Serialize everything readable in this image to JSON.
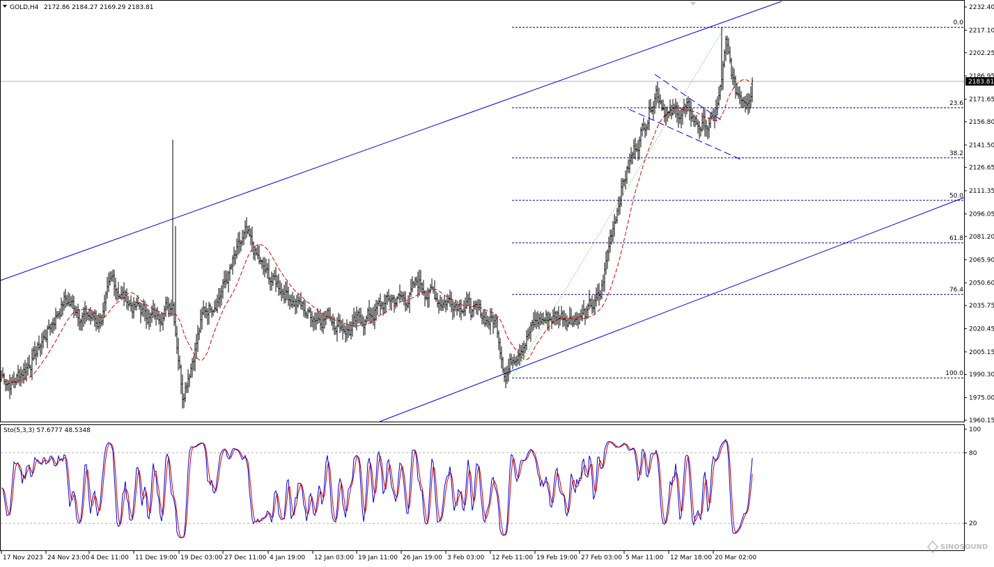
{
  "header": {
    "symbol": "GOLD,H4",
    "ohlc": "2172.86 2184.27 2169.29 2183.81"
  },
  "price_axis": {
    "ticks": [
      "2232.40",
      "2217.10",
      "2202.25",
      "2186.95",
      "2171.65",
      "2156.80",
      "2141.50",
      "2126.65",
      "2111.35",
      "2096.05",
      "2081.20",
      "2065.90",
      "2050.60",
      "2035.75",
      "2020.45",
      "2005.15",
      "1990.30",
      "1975.00",
      "1960.15"
    ],
    "current_price": "2183.81"
  },
  "fib_levels": [
    {
      "label": "0.0",
      "price": 2219
    },
    {
      "label": "23.6",
      "price": 2166
    },
    {
      "label": "38.2",
      "price": 2133
    },
    {
      "label": "50.0",
      "price": 2105
    },
    {
      "label": "61.8",
      "price": 2077
    },
    {
      "label": "76.4",
      "price": 2043
    },
    {
      "label": "100.0",
      "price": 1988
    }
  ],
  "stochastic": {
    "label": "Sto(5,3,3) 57.6777 48.5348",
    "levels": [
      "100",
      "80",
      "20"
    ]
  },
  "time_axis": {
    "labels": [
      "17 Nov 2023",
      "24 Nov 23:00",
      "4 Dec 11:00",
      "11 Dec 19:00",
      "19 Dec 03:00",
      "27 Dec 11:00",
      "4 Jan 19:00",
      "12 Jan 03:00",
      "19 Jan 11:00",
      "26 Jan 19:00",
      "3 Feb 03:00",
      "12 Feb 11:00",
      "19 Feb 19:00",
      "27 Feb 03:00",
      "5 Mar 11:00",
      "12 Mar 18:00",
      "20 Mar 02:00"
    ]
  },
  "watermark": "SINOSOUND",
  "colors": {
    "candle": "#000000",
    "channel": "#0000cd",
    "ma": "#cc0000",
    "fib": "#00008b",
    "stoch_main": "#0000cd",
    "stoch_signal": "#cc0000"
  },
  "chart_data": {
    "type": "candlestick",
    "symbol": "GOLD",
    "timeframe": "H4",
    "ylim": [
      1960.15,
      2232.4
    ],
    "anchor_prices": [
      {
        "bar": 0,
        "price": 1990
      },
      {
        "bar": 8,
        "price": 1985
      },
      {
        "bar": 25,
        "price": 2005
      },
      {
        "bar": 45,
        "price": 2040
      },
      {
        "bar": 60,
        "price": 2030
      },
      {
        "bar": 70,
        "price": 2025
      },
      {
        "bar": 80,
        "price": 2050
      },
      {
        "bar": 95,
        "price": 2035
      },
      {
        "bar": 110,
        "price": 2028
      },
      {
        "bar": 123,
        "price": 2040
      },
      {
        "bar": 130,
        "price": 1980
      },
      {
        "bar": 145,
        "price": 2030
      },
      {
        "bar": 160,
        "price": 2050
      },
      {
        "bar": 175,
        "price": 2080
      },
      {
        "bar": 190,
        "price": 2055
      },
      {
        "bar": 205,
        "price": 2045
      },
      {
        "bar": 220,
        "price": 2030
      },
      {
        "bar": 235,
        "price": 2030
      },
      {
        "bar": 250,
        "price": 2020
      },
      {
        "bar": 265,
        "price": 2030
      },
      {
        "bar": 280,
        "price": 2040
      },
      {
        "bar": 290,
        "price": 2040
      },
      {
        "bar": 300,
        "price": 2050
      },
      {
        "bar": 315,
        "price": 2040
      },
      {
        "bar": 330,
        "price": 2040
      },
      {
        "bar": 340,
        "price": 2030
      },
      {
        "bar": 355,
        "price": 2025
      },
      {
        "bar": 362,
        "price": 1992
      },
      {
        "bar": 372,
        "price": 2012
      },
      {
        "bar": 385,
        "price": 2025
      },
      {
        "bar": 400,
        "price": 2030
      },
      {
        "bar": 420,
        "price": 2030
      },
      {
        "bar": 430,
        "price": 2040
      },
      {
        "bar": 437,
        "price": 2080
      },
      {
        "bar": 445,
        "price": 2115
      },
      {
        "bar": 455,
        "price": 2140
      },
      {
        "bar": 463,
        "price": 2160
      },
      {
        "bar": 470,
        "price": 2180
      },
      {
        "bar": 480,
        "price": 2160
      },
      {
        "bar": 490,
        "price": 2165
      },
      {
        "bar": 500,
        "price": 2155
      },
      {
        "bar": 510,
        "price": 2155
      },
      {
        "bar": 515,
        "price": 2170
      },
      {
        "bar": 520,
        "price": 2205
      },
      {
        "bar": 527,
        "price": 2175
      },
      {
        "bar": 535,
        "price": 2175
      },
      {
        "bar": 539,
        "price": 2183.81
      }
    ],
    "bar_count": 540
  }
}
